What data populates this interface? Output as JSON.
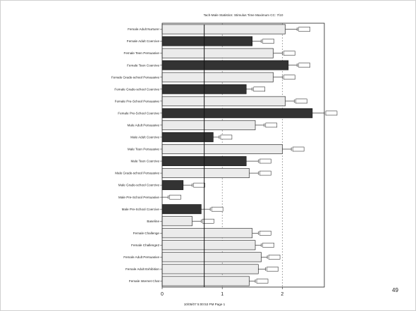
{
  "page_number": "49",
  "colors": {
    "light_bar": "#ebebeb",
    "dark_bar": "#333333",
    "axis": "#222222",
    "grid": "#777777"
  },
  "chart_data": {
    "type": "bar",
    "orientation": "horizontal",
    "title": "Tach-Male    Statistics: Stimulus Time Maximum    CC: 7/10",
    "footer": "10/05/07 5:00:53 PM Page 1",
    "xlim": [
      0,
      2.7
    ],
    "xticks": [
      0,
      1,
      2
    ],
    "xtick_labels": [
      "0",
      "1",
      "2"
    ],
    "grid": "dashed vertical at x = 1 and x = 2",
    "reference_line_x": 0.7,
    "error_label_note": "small boxed numeric labels at bar ends are not legible",
    "categories": [
      "Female Adult Nurturer",
      "Female Adult Coercive",
      "Female Teen Persuasive",
      "Female Teen Coercive",
      "Female Grade-school Persuasive",
      "Female Grade-school Coercive",
      "Female Pre-School Persuasive",
      "Female Pre-School Coercive",
      "Male Adult Persuasive",
      "Male Adult Coercive",
      "Male Teen Persuasive",
      "Male Teen Coercive",
      "Male Grade-school Persuasive",
      "Male Grade-school Coercive",
      "Male Pre-School Persuasive",
      "Male Pre-School Coercive",
      "Baseline",
      "Female Challenge",
      "Female Challenge2",
      "Female Adult Persuasive",
      "Female Adult Exhibition",
      "Female Internet Chat"
    ],
    "values": [
      2.05,
      1.5,
      1.85,
      2.1,
      1.85,
      1.4,
      2.05,
      2.5,
      1.55,
      0.85,
      2.0,
      1.4,
      1.45,
      0.35,
      0.0,
      0.65,
      0.5,
      1.5,
      1.55,
      1.65,
      1.6,
      1.45
    ],
    "errors": [
      0.2,
      0.15,
      0.15,
      0.15,
      0.15,
      0.1,
      0.15,
      0.2,
      0.15,
      0.1,
      0.15,
      0.2,
      0.15,
      0.15,
      0.1,
      0.15,
      0.15,
      0.1,
      0.1,
      0.1,
      0.12,
      0.1
    ],
    "fills": [
      "light",
      "dark",
      "light",
      "dark",
      "light",
      "dark",
      "light",
      "dark",
      "light",
      "dark",
      "light",
      "dark",
      "light",
      "dark",
      "light",
      "dark",
      "light",
      "light",
      "light",
      "light",
      "light",
      "light"
    ]
  }
}
